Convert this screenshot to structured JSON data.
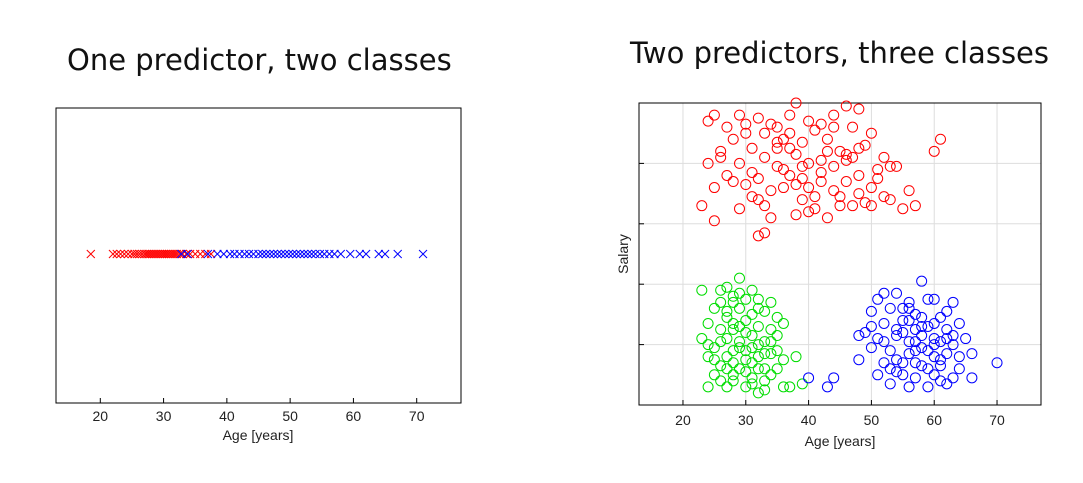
{
  "titles": {
    "left": "One predictor, two classes",
    "right": "Two predictors, three classes"
  },
  "colors": {
    "red": "#ff0000",
    "blue": "#0000ff",
    "green": "#00dd00"
  },
  "chart_data": [
    {
      "type": "scatter",
      "title": "One predictor, two classes",
      "xlabel": "Age [years]",
      "ylabel": "",
      "xlim": [
        13,
        77
      ],
      "xticks": [
        20,
        30,
        40,
        50,
        60,
        70
      ],
      "grid": false,
      "marker": "x",
      "series": [
        {
          "color": "#ff0000",
          "x": [
            18.5,
            22,
            22.6,
            23.2,
            23.8,
            24.4,
            25,
            25.4,
            25.8,
            26.2,
            26.6,
            27,
            27.3,
            27.6,
            27.9,
            28.2,
            28.5,
            28.8,
            29.1,
            29.4,
            29.7,
            30,
            30.3,
            30.6,
            30.9,
            31.2,
            31.5,
            31.8,
            32.1,
            32.5,
            33,
            33.6,
            34.2,
            35,
            35.8,
            36.6,
            37.5
          ]
        },
        {
          "color": "#0000ff",
          "x": [
            32.8,
            33.8,
            37,
            38.5,
            39.5,
            40.5,
            41.2,
            42,
            42.8,
            43.5,
            44.2,
            45,
            45.6,
            46.2,
            46.8,
            47.4,
            48,
            48.6,
            49.2,
            49.8,
            50.4,
            51,
            51.6,
            52.2,
            52.8,
            53.4,
            54,
            54.7,
            55.4,
            56.2,
            57,
            58,
            59.5,
            61,
            62,
            64,
            65,
            67,
            71
          ]
        }
      ]
    },
    {
      "type": "scatter",
      "title": "Two predictors, three classes",
      "xlabel": "Age [years]",
      "ylabel": "Salary",
      "xlim": [
        13,
        77
      ],
      "xticks": [
        20,
        30,
        40,
        50,
        60,
        70
      ],
      "ylim": [
        0,
        5
      ],
      "grid": true,
      "marker": "o",
      "series": [
        {
          "color": "#ff0000",
          "points": [
            [
              38,
              5
            ],
            [
              46,
              4.95
            ],
            [
              48,
              4.9
            ],
            [
              25,
              4.8
            ],
            [
              29,
              4.8
            ],
            [
              37,
              4.8
            ],
            [
              44,
              4.8
            ],
            [
              24,
              4.7
            ],
            [
              32,
              4.75
            ],
            [
              40,
              4.7
            ],
            [
              27,
              4.6
            ],
            [
              34,
              4.65
            ],
            [
              41,
              4.55
            ],
            [
              30,
              4.5
            ],
            [
              35,
              4.6
            ],
            [
              47,
              4.6
            ],
            [
              50,
              4.5
            ],
            [
              28,
              4.4
            ],
            [
              36,
              4.4
            ],
            [
              39,
              4.35
            ],
            [
              43,
              4.4
            ],
            [
              49,
              4.3
            ],
            [
              26,
              4.2
            ],
            [
              31,
              4.25
            ],
            [
              33,
              4.1
            ],
            [
              38,
              4.15
            ],
            [
              45,
              4.2
            ],
            [
              52,
              4.1
            ],
            [
              24,
              4
            ],
            [
              29,
              4
            ],
            [
              35,
              3.95
            ],
            [
              40,
              4
            ],
            [
              46,
              4.05
            ],
            [
              54,
              3.95
            ],
            [
              27,
              3.8
            ],
            [
              32,
              3.75
            ],
            [
              37,
              3.8
            ],
            [
              42,
              3.85
            ],
            [
              48,
              3.8
            ],
            [
              51,
              3.75
            ],
            [
              25,
              3.6
            ],
            [
              30,
              3.65
            ],
            [
              36,
              3.6
            ],
            [
              44,
              3.55
            ],
            [
              50,
              3.6
            ],
            [
              56,
              3.55
            ],
            [
              31,
              3.45
            ],
            [
              39,
              3.4
            ],
            [
              45,
              3.45
            ],
            [
              53,
              3.4
            ],
            [
              23,
              3.3
            ],
            [
              33,
              3.3
            ],
            [
              41,
              3.25
            ],
            [
              47,
              3.3
            ],
            [
              55,
              3.25
            ],
            [
              34,
              3.1
            ],
            [
              43,
              3.1
            ],
            [
              25,
              3.05
            ],
            [
              57,
              3.3
            ],
            [
              60,
              4.2
            ],
            [
              61,
              4.4
            ],
            [
              42,
              4.65
            ],
            [
              37,
              4.5
            ],
            [
              33,
              4.5
            ],
            [
              46,
              3.7
            ],
            [
              40,
              3.6
            ],
            [
              48,
              3.5
            ],
            [
              52,
              3.45
            ],
            [
              29,
              3.25
            ],
            [
              38,
              3.15
            ],
            [
              45,
              3.3
            ],
            [
              26,
              4.1
            ],
            [
              35,
              4.25
            ],
            [
              44,
              3.95
            ],
            [
              41,
              3.45
            ],
            [
              50,
              3.3
            ],
            [
              32,
              3.4
            ],
            [
              36,
              3.9
            ],
            [
              39,
              3.75
            ],
            [
              31,
              3.85
            ],
            [
              43,
              4.2
            ],
            [
              47,
              4.1
            ],
            [
              28,
              3.7
            ],
            [
              34,
              3.55
            ],
            [
              40,
              3.2
            ],
            [
              49,
              3.35
            ],
            [
              53,
              3.95
            ],
            [
              35,
              4.35
            ],
            [
              42,
              4.05
            ],
            [
              30,
              4.65
            ],
            [
              32,
              2.8
            ],
            [
              33,
              2.85
            ],
            [
              38,
              3.65
            ],
            [
              44,
              4.6
            ],
            [
              37,
              4.25
            ],
            [
              46,
              4.15
            ],
            [
              48,
              4.25
            ],
            [
              51,
              3.9
            ],
            [
              39,
              3.95
            ],
            [
              42,
              3.7
            ]
          ]
        },
        {
          "color": "#00dd00",
          "points": [
            [
              29,
              2.1
            ],
            [
              27,
              1.95
            ],
            [
              31,
              1.9
            ],
            [
              23,
              1.9
            ],
            [
              28,
              1.8
            ],
            [
              32,
              1.75
            ],
            [
              26,
              1.7
            ],
            [
              30,
              1.75
            ],
            [
              34,
              1.7
            ],
            [
              25,
              1.6
            ],
            [
              29,
              1.6
            ],
            [
              33,
              1.55
            ],
            [
              27,
              1.45
            ],
            [
              31,
              1.5
            ],
            [
              35,
              1.45
            ],
            [
              24,
              1.35
            ],
            [
              28,
              1.35
            ],
            [
              32,
              1.3
            ],
            [
              26,
              1.25
            ],
            [
              30,
              1.2
            ],
            [
              34,
              1.25
            ],
            [
              23,
              1.1
            ],
            [
              27,
              1.1
            ],
            [
              29,
              1.05
            ],
            [
              33,
              1.05
            ],
            [
              25,
              0.95
            ],
            [
              28,
              0.9
            ],
            [
              31,
              0.95
            ],
            [
              35,
              0.9
            ],
            [
              24,
              0.8
            ],
            [
              27,
              0.8
            ],
            [
              30,
              0.75
            ],
            [
              32,
              0.8
            ],
            [
              36,
              0.75
            ],
            [
              26,
              0.65
            ],
            [
              29,
              0.6
            ],
            [
              33,
              0.6
            ],
            [
              25,
              0.5
            ],
            [
              28,
              0.5
            ],
            [
              31,
              0.45
            ],
            [
              34,
              0.5
            ],
            [
              24,
              0.3
            ],
            [
              27,
              0.3
            ],
            [
              30,
              0.3
            ],
            [
              33,
              0.25
            ],
            [
              36,
              0.3
            ],
            [
              32,
              0.2
            ],
            [
              26,
              0.4
            ],
            [
              30,
              1.4
            ],
            [
              28,
              1.25
            ],
            [
              32,
              1.6
            ],
            [
              29,
              0.95
            ],
            [
              31,
              0.7
            ],
            [
              27,
              0.6
            ],
            [
              33,
              0.85
            ],
            [
              30,
              0.55
            ],
            [
              28,
              1.7
            ],
            [
              26,
              1.05
            ],
            [
              34,
              1.05
            ],
            [
              25,
              0.75
            ],
            [
              31,
              1.15
            ],
            [
              29,
              1.3
            ],
            [
              35,
              0.6
            ],
            [
              28,
              0.4
            ],
            [
              33,
              0.4
            ],
            [
              30,
              0.9
            ],
            [
              32,
              1.0
            ],
            [
              27,
              1.55
            ],
            [
              24,
              1.0
            ],
            [
              36,
              1.35
            ],
            [
              38,
              0.8
            ],
            [
              37,
              0.3
            ],
            [
              39,
              0.35
            ],
            [
              29,
              1.85
            ],
            [
              26,
              1.9
            ],
            [
              31,
              0.35
            ],
            [
              34,
              0.85
            ],
            [
              35,
              1.15
            ],
            [
              28,
              0.7
            ],
            [
              32,
              0.6
            ]
          ]
        },
        {
          "color": "#0000ff",
          "points": [
            [
              58,
              2.05
            ],
            [
              51,
              1.75
            ],
            [
              54,
              1.85
            ],
            [
              56,
              1.7
            ],
            [
              60,
              1.75
            ],
            [
              63,
              1.7
            ],
            [
              50,
              1.55
            ],
            [
              53,
              1.6
            ],
            [
              57,
              1.5
            ],
            [
              61,
              1.45
            ],
            [
              64,
              1.35
            ],
            [
              52,
              1.35
            ],
            [
              55,
              1.4
            ],
            [
              58,
              1.3
            ],
            [
              62,
              1.25
            ],
            [
              49,
              1.2
            ],
            [
              51,
              1.1
            ],
            [
              54,
              1.15
            ],
            [
              57,
              1.05
            ],
            [
              60,
              1.1
            ],
            [
              63,
              1.0
            ],
            [
              65,
              1.1
            ],
            [
              50,
              0.95
            ],
            [
              53,
              0.9
            ],
            [
              56,
              0.85
            ],
            [
              59,
              0.9
            ],
            [
              62,
              0.85
            ],
            [
              66,
              0.85
            ],
            [
              48,
              0.75
            ],
            [
              52,
              0.7
            ],
            [
              55,
              0.7
            ],
            [
              58,
              0.65
            ],
            [
              61,
              0.65
            ],
            [
              64,
              0.6
            ],
            [
              70,
              0.7
            ],
            [
              51,
              0.5
            ],
            [
              54,
              0.55
            ],
            [
              57,
              0.45
            ],
            [
              60,
              0.5
            ],
            [
              63,
              0.45
            ],
            [
              66,
              0.45
            ],
            [
              53,
              0.35
            ],
            [
              56,
              0.3
            ],
            [
              59,
              0.3
            ],
            [
              62,
              0.35
            ],
            [
              40,
              0.45
            ],
            [
              44,
              0.45
            ],
            [
              43,
              0.3
            ],
            [
              55,
              1.2
            ],
            [
              58,
              1.45
            ],
            [
              61,
              1.05
            ],
            [
              57,
              1.25
            ],
            [
              59,
              1.3
            ],
            [
              56,
              1.05
            ],
            [
              53,
              0.6
            ],
            [
              60,
              0.8
            ],
            [
              62,
              1.55
            ],
            [
              52,
              1.85
            ],
            [
              55,
              1.6
            ],
            [
              58,
              1.15
            ],
            [
              60,
              1.35
            ],
            [
              57,
              0.9
            ],
            [
              54,
              0.75
            ],
            [
              61,
              0.4
            ],
            [
              64,
              0.8
            ],
            [
              59,
              1.75
            ],
            [
              56,
              1.6
            ],
            [
              50,
              1.3
            ],
            [
              48,
              1.15
            ],
            [
              55,
              0.5
            ],
            [
              58,
              0.95
            ],
            [
              63,
              1.15
            ],
            [
              60,
              1.0
            ],
            [
              57,
              0.7
            ],
            [
              52,
              1.05
            ],
            [
              61,
              0.75
            ],
            [
              59,
              0.6
            ],
            [
              56,
              1.4
            ],
            [
              54,
              1.25
            ],
            [
              62,
              1.1
            ]
          ]
        }
      ]
    }
  ]
}
